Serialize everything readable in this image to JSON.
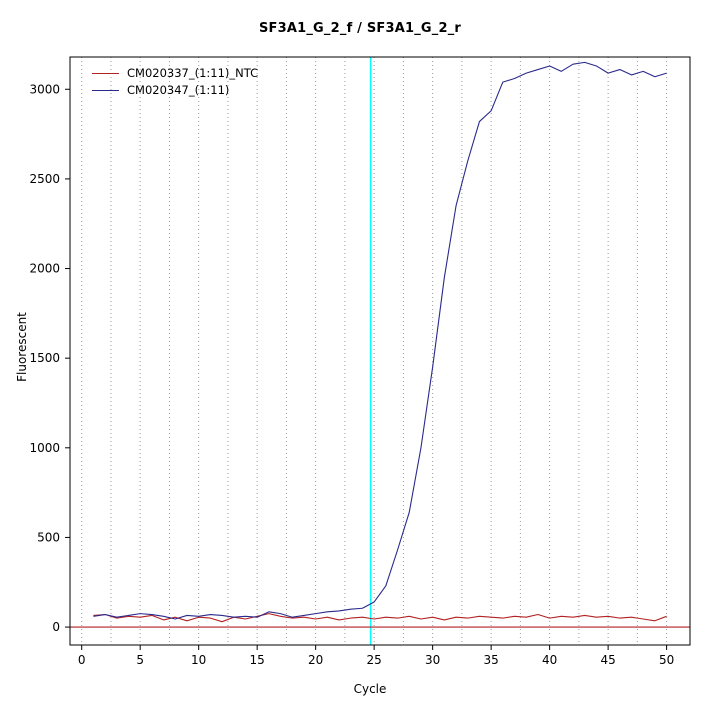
{
  "page": {
    "title": "SF3A1_G_2_f / SF3A1_G_2_r"
  },
  "chart_data": {
    "type": "line",
    "title": "SF3A1_G_2_f / SF3A1_G_2_r",
    "xlabel": "Cycle",
    "ylabel": "Fluorescent",
    "xlim": [
      -1,
      52
    ],
    "ylim": [
      -100,
      3180
    ],
    "x_ticks": [
      0,
      5,
      10,
      15,
      20,
      25,
      30,
      35,
      40,
      45,
      50
    ],
    "y_ticks": [
      0,
      500,
      1000,
      1500,
      2000,
      2500,
      3000
    ],
    "grid": {
      "vertical_interval": 2.5,
      "from": 0,
      "to": 50,
      "style": "dotted",
      "color": "#9a9a9a"
    },
    "legend_position": "top-left",
    "x": [
      1,
      2,
      3,
      4,
      5,
      6,
      7,
      8,
      9,
      10,
      11,
      12,
      13,
      14,
      15,
      16,
      17,
      18,
      19,
      20,
      21,
      22,
      23,
      24,
      25,
      26,
      27,
      28,
      29,
      30,
      31,
      32,
      33,
      34,
      35,
      36,
      37,
      38,
      39,
      40,
      41,
      42,
      43,
      44,
      45,
      46,
      47,
      48,
      49,
      50
    ],
    "series": [
      {
        "name": "CM020337_(1:11)_NTC",
        "color": "#b22222",
        "values": [
          65,
          70,
          50,
          60,
          55,
          65,
          40,
          55,
          35,
          55,
          50,
          30,
          55,
          45,
          60,
          75,
          60,
          50,
          55,
          45,
          55,
          40,
          50,
          55,
          45,
          55,
          50,
          60,
          45,
          55,
          40,
          55,
          50,
          60,
          55,
          50,
          60,
          55,
          70,
          50,
          60,
          55,
          65,
          55,
          60,
          50,
          55,
          45,
          35,
          60
        ]
      },
      {
        "name": "CM020347_(1:11)",
        "color": "#2a2a8c",
        "values": [
          60,
          70,
          55,
          65,
          75,
          70,
          60,
          45,
          65,
          60,
          70,
          65,
          55,
          60,
          55,
          85,
          75,
          55,
          65,
          75,
          85,
          90,
          100,
          105,
          140,
          230,
          430,
          640,
          1000,
          1450,
          1950,
          2350,
          2600,
          2820,
          2880,
          3040,
          3060,
          3090,
          3110,
          3130,
          3100,
          3140,
          3150,
          3130,
          3090,
          3110,
          3080,
          3100,
          3070,
          3090
        ]
      }
    ],
    "threshold_vline": {
      "x": 24.7,
      "color": "#00ffff"
    },
    "baseline_hline": {
      "y": 0,
      "color": "#b22222"
    }
  }
}
